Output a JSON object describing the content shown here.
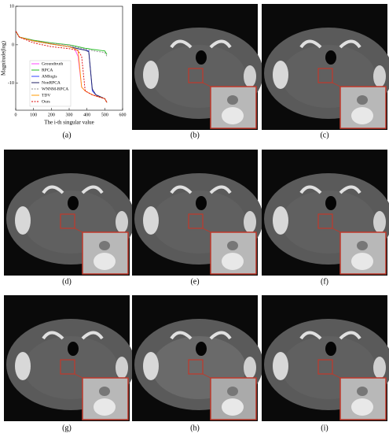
{
  "chart_data": {
    "type": "line",
    "x_label": "The i-th singular value",
    "y_label": "Magnitude(log)",
    "x": [
      1,
      20,
      100,
      200,
      300,
      330,
      350,
      370,
      390,
      410,
      430,
      450,
      500,
      512
    ],
    "series": [
      {
        "name": "Groundtruth",
        "color": "#ff44ff",
        "dash": "solid",
        "values": [
          3.5,
          2,
          1,
          0.2,
          -0.5,
          -1,
          -3,
          -11,
          -12,
          -12.5,
          -13,
          -13.3,
          -14,
          -15
        ]
      },
      {
        "name": "RPCA",
        "color": "#22bb22",
        "dash": "solid",
        "values": [
          3.5,
          2,
          1.2,
          0.5,
          0,
          -0.3,
          -0.5,
          -0.7,
          -0.9,
          -1,
          -1.2,
          -1.3,
          -1.6,
          -2.5
        ]
      },
      {
        "name": "AMlogis",
        "color": "#3344ff",
        "dash": "solid",
        "values": [
          3.5,
          2,
          1,
          0.2,
          -0.5,
          -0.8,
          -1,
          -1.2,
          -1.4,
          -1.6,
          -12,
          -13,
          -14,
          -15
        ]
      },
      {
        "name": "NonRPCA",
        "color": "#222266",
        "dash": "solid",
        "values": [
          3.5,
          2,
          1,
          0.2,
          -0.5,
          -0.8,
          -1,
          -1.2,
          -1.4,
          -1.8,
          -11.5,
          -13,
          -14,
          -15
        ]
      },
      {
        "name": "WNNM-RPCA",
        "color": "#888888",
        "dash": "dash",
        "values": [
          3.5,
          2,
          1.1,
          0.4,
          -0.1,
          -0.5,
          -0.7,
          -0.9,
          -1.1,
          -1.3,
          -1.5,
          -1.7,
          -2,
          -3
        ]
      },
      {
        "name": "TDV",
        "color": "#ff9900",
        "dash": "solid",
        "values": [
          3.5,
          2,
          1,
          0.2,
          -0.5,
          -1,
          -1.5,
          -11,
          -12,
          -12.5,
          -13,
          -13.3,
          -14,
          -15
        ]
      },
      {
        "name": "Ours",
        "color": "#dd0000",
        "dash": "dash",
        "values": [
          3.5,
          2,
          0.5,
          -0.5,
          -1,
          -1.3,
          -1.5,
          -3,
          -12,
          -12.5,
          -13,
          -13.3,
          -14,
          -15
        ]
      }
    ],
    "xlim": [
      0,
      600
    ],
    "xticks": [
      0,
      100,
      200,
      300,
      400,
      500,
      600
    ],
    "ylim": [
      -17,
      10
    ],
    "yticks": [
      -10,
      0,
      10
    ],
    "legend": "lower left"
  },
  "panel_labels": [
    "(a)",
    "(b)",
    "(c)",
    "(d)",
    "(e)",
    "(f)",
    "(g)",
    "(h)",
    "(i)"
  ]
}
